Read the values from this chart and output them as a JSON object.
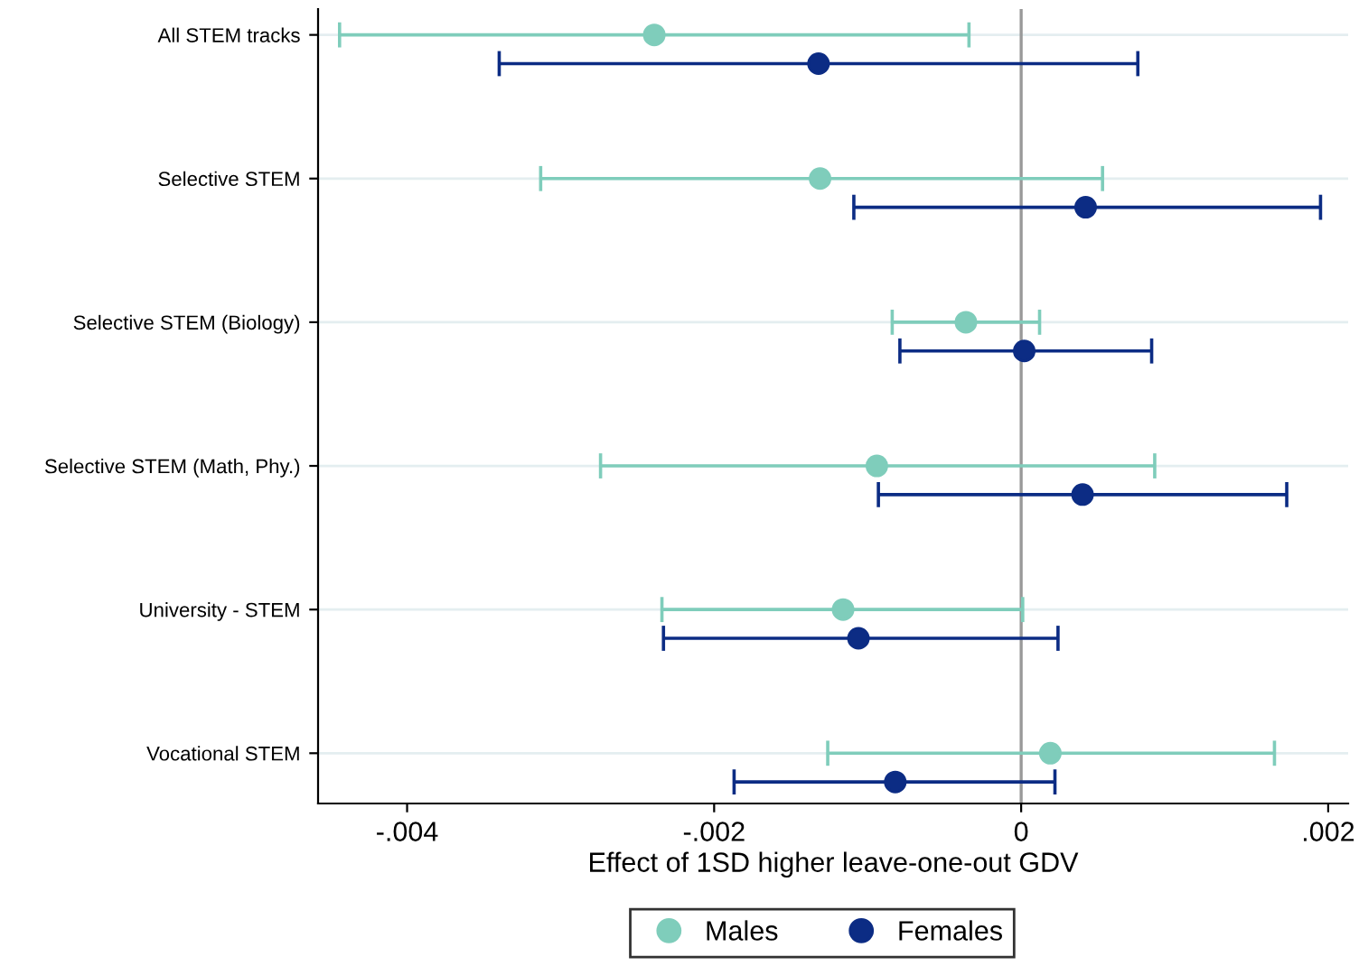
{
  "chart_data": {
    "type": "scatter",
    "orientation": "horizontal",
    "xlabel": "Effect of 1SD higher leave-one-out GDV",
    "categories": [
      "All STEM tracks",
      "Selective STEM",
      "Selective STEM (Biology)",
      "Selective STEM (Math, Phy.)",
      "University - STEM",
      "Vocational STEM"
    ],
    "series": [
      {
        "name": "Males",
        "color": "#7fcdbb",
        "values": [
          -0.00239,
          -0.00131,
          -0.00036,
          -0.00094,
          -0.00116,
          0.00019
        ],
        "errors": [
          [
            -0.00444,
            -0.00034
          ],
          [
            -0.00313,
            0.00053
          ],
          [
            -0.00084,
            0.00012
          ],
          [
            -0.00274,
            0.00087
          ],
          [
            -0.00234,
            1e-05
          ],
          [
            -0.00126,
            0.00165
          ]
        ]
      },
      {
        "name": "Females",
        "color": "#0c2c84",
        "values": [
          -0.00132,
          0.00042,
          2e-05,
          0.0004,
          -0.00106,
          -0.00082
        ],
        "errors": [
          [
            -0.0034,
            0.00076
          ],
          [
            -0.00109,
            0.00195
          ],
          [
            -0.00079,
            0.00085
          ],
          [
            -0.00093,
            0.00173
          ],
          [
            -0.00233,
            0.00024
          ],
          [
            -0.00187,
            0.00022
          ]
        ]
      }
    ],
    "xlim": [
      -0.00458,
      0.00213
    ],
    "xticks": [
      {
        "value": -0.004,
        "label": "-.004"
      },
      {
        "value": -0.002,
        "label": "-.002"
      },
      0,
      {
        "value": 0.002,
        "label": ".002"
      }
    ],
    "ref_lines": [
      {
        "axis": "x",
        "value": 0,
        "color": "#999999"
      }
    ],
    "grid": "y",
    "legend": "bottom",
    "marker": "circle"
  }
}
